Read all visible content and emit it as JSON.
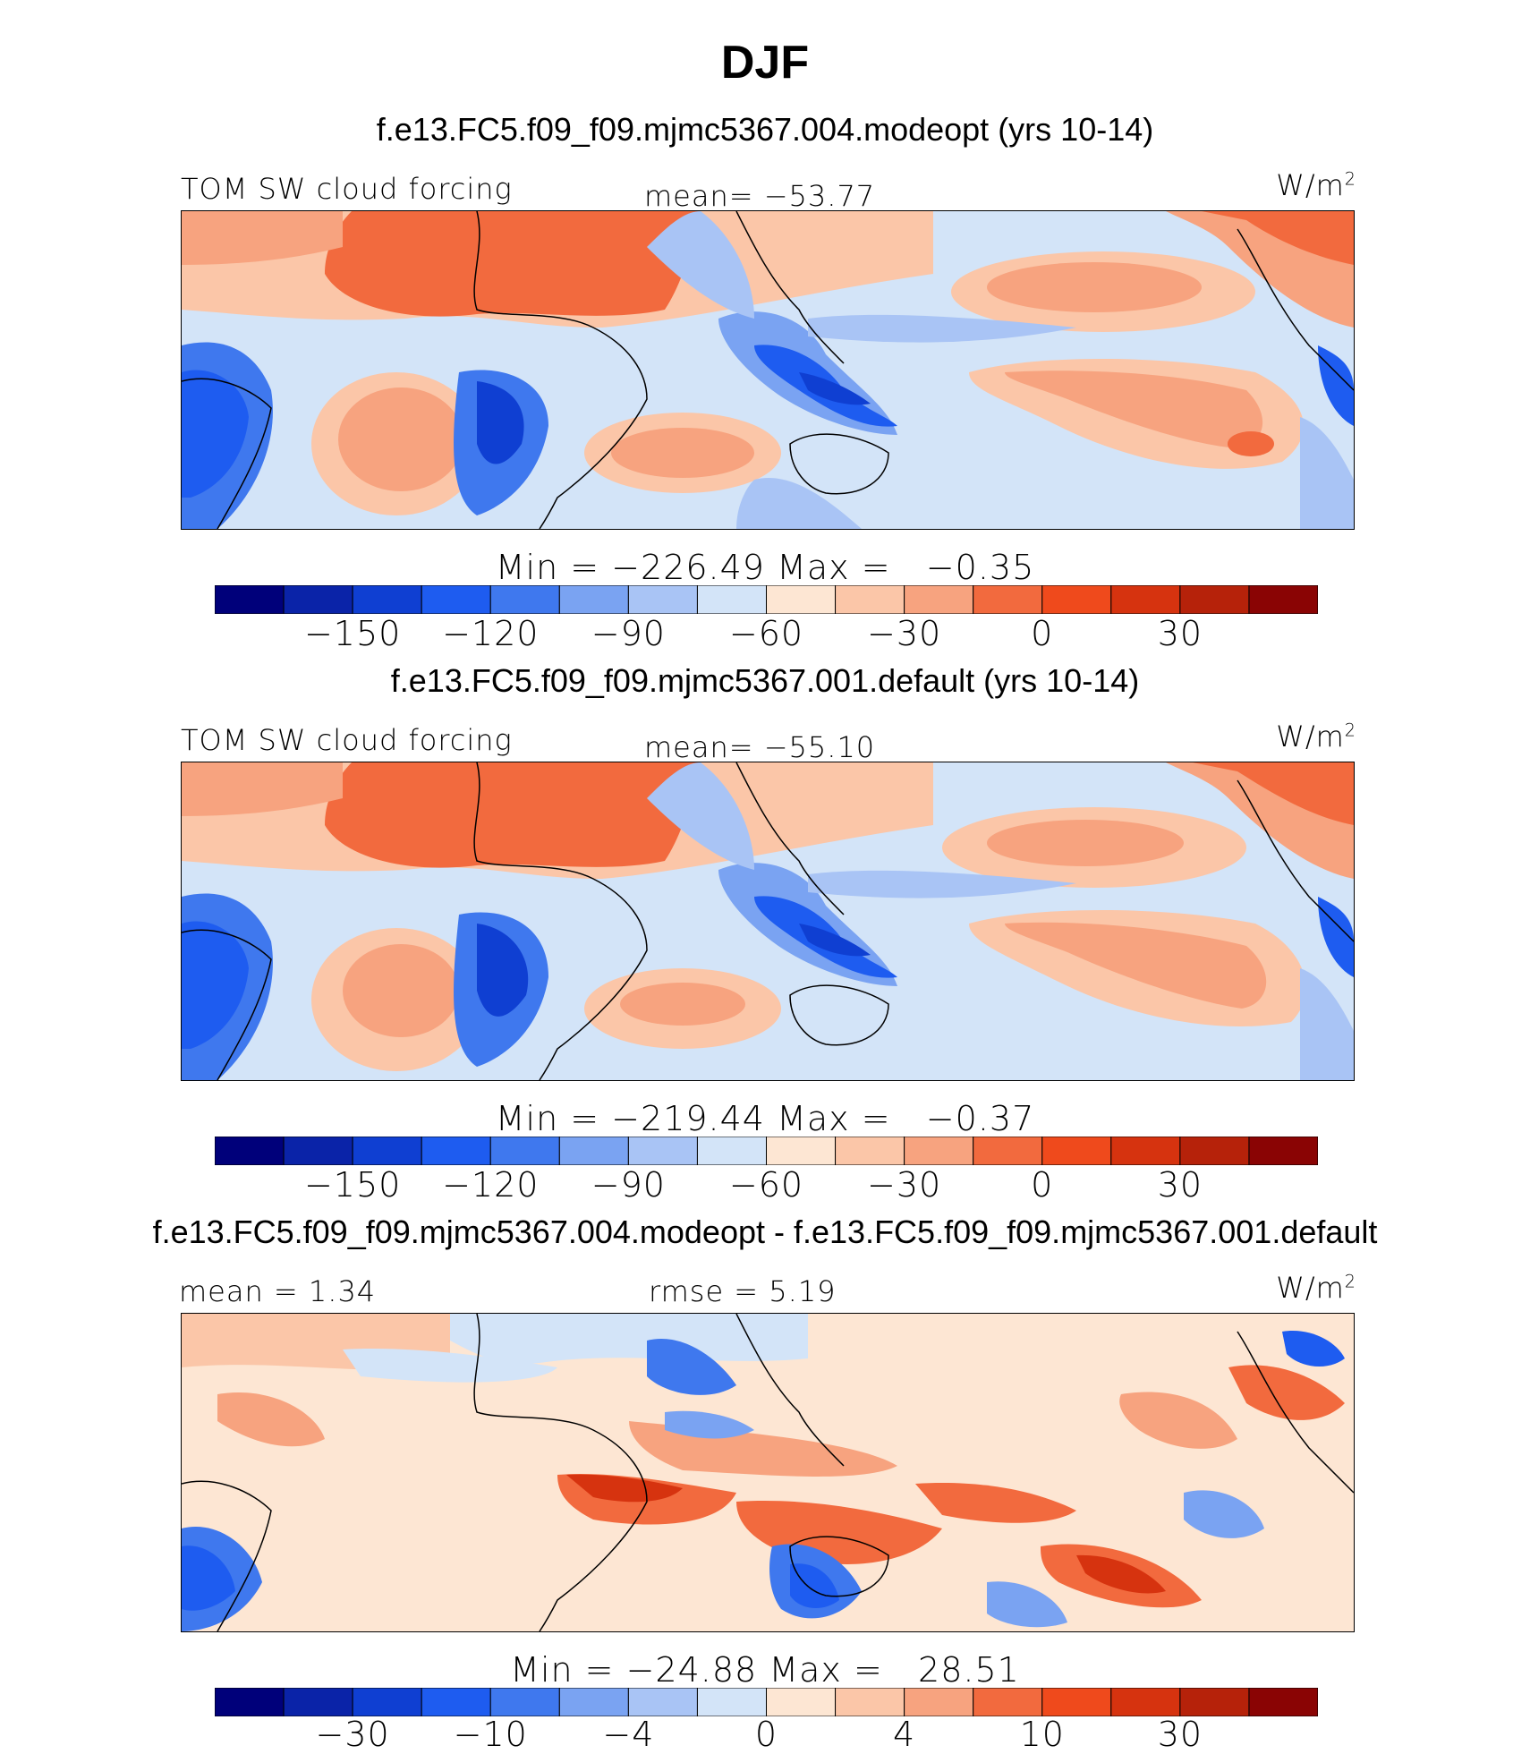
{
  "figure_title": "DJF",
  "palette": [
    "#00007a",
    "#0a23a8",
    "#0f3fd2",
    "#1e5cf0",
    "#3f78ee",
    "#7aa3f2",
    "#a9c4f5",
    "#d3e4f8",
    "#fde6d3",
    "#fbc6a8",
    "#f7a37f",
    "#f26a3e",
    "#ef4a1c",
    "#d6330f",
    "#b6220a",
    "#8a0404"
  ],
  "panels": [
    {
      "case_title": "f.e13.FC5.f09_f09.mjmc5367.004.modeopt (yrs 10-14)",
      "left_label": "TOM SW cloud forcing",
      "center_label": "mean= −53.77",
      "units_base": "W/m",
      "units_exp": "2",
      "min_label": "Min",
      "min_value": "−226.49",
      "max_label": "Max",
      "max_value": "−0.35",
      "colorbar_ticks": [
        "−150",
        "−120",
        "−90",
        "−60",
        "−30",
        "0",
        "30"
      ]
    },
    {
      "case_title": "f.e13.FC5.f09_f09.mjmc5367.001.default (yrs 10-14)",
      "left_label": "TOM SW cloud forcing",
      "center_label": "mean= −55.10",
      "units_base": "W/m",
      "units_exp": "2",
      "min_label": "Min",
      "min_value": "−219.44",
      "max_label": "Max",
      "max_value": "−0.37",
      "colorbar_ticks": [
        "−150",
        "−120",
        "−90",
        "−60",
        "−30",
        "0",
        "30"
      ]
    },
    {
      "case_title": "f.e13.FC5.f09_f09.mjmc5367.004.modeopt - f.e13.FC5.f09_f09.mjmc5367.001.default",
      "left_label": "mean =   1.34",
      "center_label": "rmse =   5.19",
      "units_base": "W/m",
      "units_exp": "2",
      "min_label": "Min",
      "min_value": "−24.88",
      "max_label": "Max",
      "max_value": "28.51",
      "colorbar_ticks": [
        "−30",
        "−10",
        "−4",
        "0",
        "4",
        "10",
        "30"
      ]
    }
  ],
  "chart_data": [
    {
      "type": "heatmap",
      "title": "f.e13.FC5.f09_f09.mjmc5367.004.modeopt (yrs 10-14)",
      "variable": "TOM SW cloud forcing",
      "units": "W/m2",
      "mean": -53.77,
      "min": -226.49,
      "max": -0.35,
      "colorbar_ticks": [
        -150,
        -120,
        -90,
        -60,
        -30,
        0,
        30
      ]
    },
    {
      "type": "heatmap",
      "title": "f.e13.FC5.f09_f09.mjmc5367.001.default (yrs 10-14)",
      "variable": "TOM SW cloud forcing",
      "units": "W/m2",
      "mean": -55.1,
      "min": -219.44,
      "max": -0.37,
      "colorbar_ticks": [
        -150,
        -120,
        -90,
        -60,
        -30,
        0,
        30
      ]
    },
    {
      "type": "heatmap",
      "title": "f.e13.FC5.f09_f09.mjmc5367.004.modeopt - f.e13.FC5.f09_f09.mjmc5367.001.default",
      "units": "W/m2",
      "mean": 1.34,
      "rmse": 5.19,
      "min": -24.88,
      "max": 28.51,
      "colorbar_ticks": [
        -30,
        -10,
        -4,
        0,
        4,
        10,
        30
      ]
    }
  ]
}
